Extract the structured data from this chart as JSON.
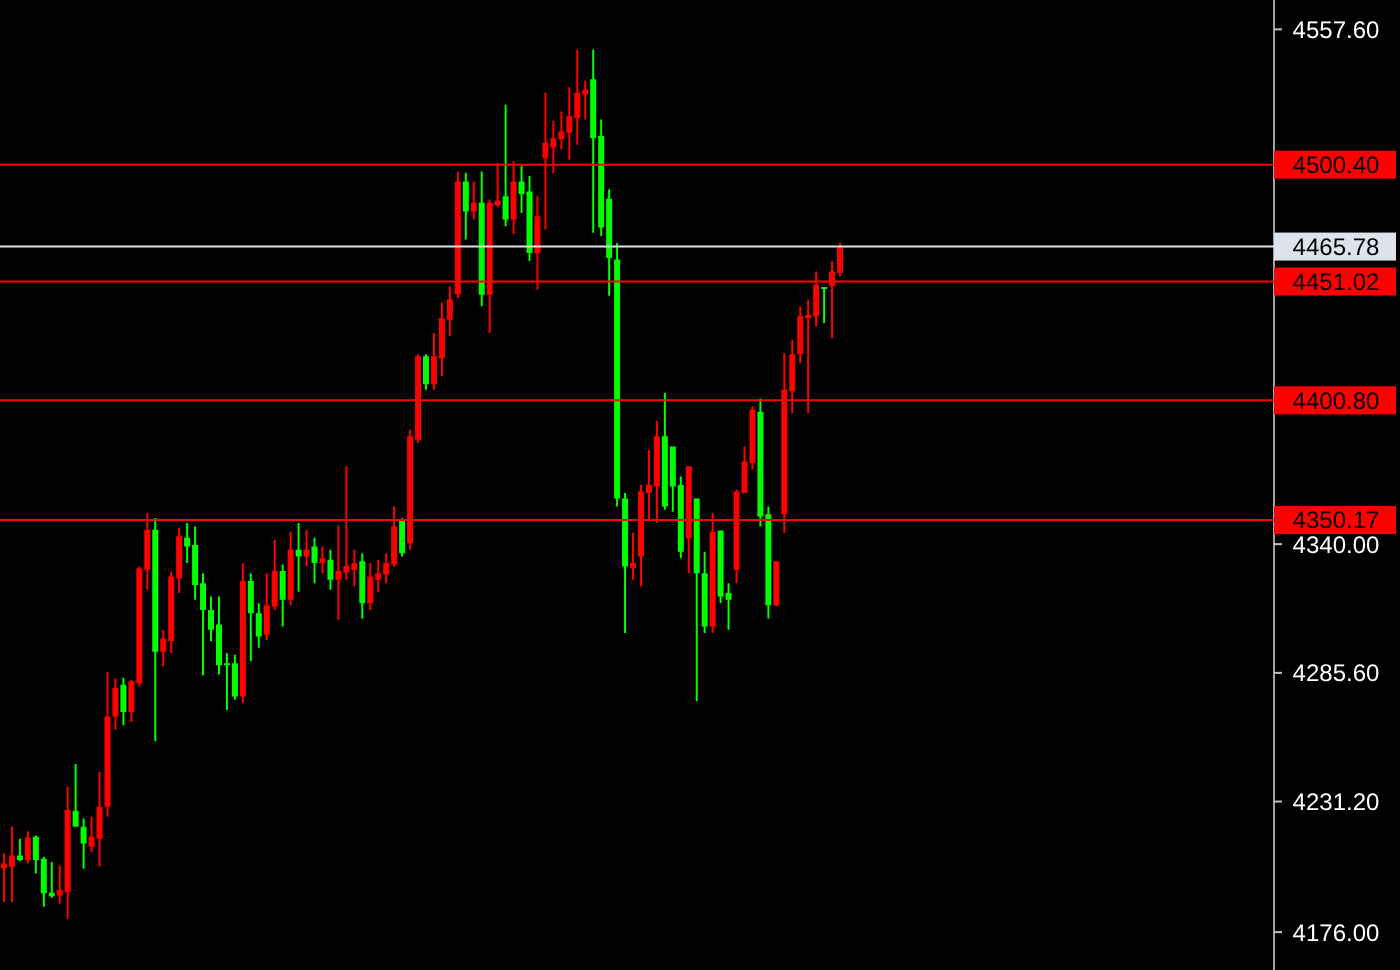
{
  "chart_data": {
    "type": "candlestick",
    "categories": [
      null,
      null,
      null,
      null,
      null,
      null,
      null,
      null,
      null,
      null,
      null,
      null,
      null,
      null,
      null,
      null,
      null,
      null,
      null,
      null,
      null,
      null,
      null,
      null,
      null,
      null,
      null,
      null,
      null,
      null,
      null,
      null,
      null,
      null,
      null,
      null,
      null,
      null,
      null,
      null,
      null,
      null,
      null,
      null,
      null,
      null,
      null,
      null,
      null,
      null,
      null,
      null,
      null,
      null,
      null,
      null,
      null,
      null,
      null,
      null,
      null,
      null,
      null,
      null,
      null,
      null,
      null,
      null,
      null,
      null,
      null,
      null,
      null,
      null,
      null,
      null,
      null,
      null,
      null,
      null,
      null,
      null,
      null,
      null,
      null,
      null,
      null,
      null,
      null,
      null,
      null,
      null,
      null,
      null,
      null,
      null,
      null,
      null,
      null,
      null,
      null,
      null,
      null,
      null,
      null,
      null,
      null,
      null,
      null,
      null,
      null,
      null,
      null,
      null,
      null,
      null,
      null,
      null,
      null,
      null,
      null,
      null,
      null,
      null,
      null,
      null,
      null,
      null,
      null,
      null,
      null,
      null,
      null,
      null,
      null,
      null,
      null,
      null,
      null,
      null,
      null,
      null,
      null,
      null,
      null,
      null,
      null,
      null,
      null,
      null,
      null,
      null,
      null,
      null,
      null,
      null,
      null,
      null,
      null,
      null
    ],
    "ohlc": [
      [
        4203,
        4209.3,
        4188.7,
        4205
      ],
      [
        4203.6,
        4220.6,
        4188.7,
        4208.4
      ],
      [
        4208.4,
        4215.5,
        4206,
        4206.5
      ],
      [
        4206.5,
        4218.6,
        4205,
        4216
      ],
      [
        4216.3,
        4216.9,
        4200.8,
        4206.5
      ],
      [
        4207,
        4207.9,
        4186.7,
        4192.4
      ],
      [
        4192.6,
        4205.6,
        4190.4,
        4191.2
      ],
      [
        4191.5,
        4204.2,
        4188.1,
        4193.8
      ],
      [
        4192.9,
        4237.5,
        4181.6,
        4227.6
      ],
      [
        4227.3,
        4247.1,
        4220.6,
        4220.6
      ],
      [
        4220.6,
        4224,
        4202.8,
        4213.5
      ],
      [
        4212.1,
        4224.8,
        4209.9,
        4216.3
      ],
      [
        4215.5,
        4243.7,
        4203.6,
        4229
      ],
      [
        4229,
        4286,
        4224.8,
        4267.1
      ],
      [
        4267.1,
        4283.2,
        4261.5,
        4279.2
      ],
      [
        4280.6,
        4283.5,
        4263.4,
        4269.1
      ],
      [
        4269.1,
        4282.6,
        4264.8,
        4282
      ],
      [
        4281.2,
        4330.6,
        4279.8,
        4329.7
      ],
      [
        4329.1,
        4353.1,
        4320.7,
        4346.1
      ],
      [
        4346.1,
        4351.1,
        4256.7,
        4294.5
      ],
      [
        4294.5,
        4303.8,
        4288.3,
        4300.1
      ],
      [
        4299,
        4328.3,
        4293.9,
        4326.3
      ],
      [
        4325.5,
        4346.9,
        4319.3,
        4343.3
      ],
      [
        4342.7,
        4348.9,
        4332,
        4339
      ],
      [
        4339.6,
        4347.5,
        4316.5,
        4322.7
      ],
      [
        4323.5,
        4327.7,
        4284.6,
        4312.2
      ],
      [
        4312.2,
        4317.9,
        4299,
        4303.8
      ],
      [
        4306,
        4317.9,
        4284.9,
        4288.8
      ],
      [
        4289.7,
        4293.9,
        4269.9,
        4288.8
      ],
      [
        4289.7,
        4293.3,
        4274.2,
        4275.6
      ],
      [
        4275.6,
        4331.9,
        4272.7,
        4324.4
      ],
      [
        4324.4,
        4327.7,
        4290.5,
        4310.8
      ],
      [
        4310.8,
        4315,
        4296.2,
        4301
      ],
      [
        4301.8,
        4327.7,
        4299.5,
        4314.2
      ],
      [
        4313.6,
        4341.8,
        4312.2,
        4328.6
      ],
      [
        4328.6,
        4331.4,
        4305.2,
        4316.5
      ],
      [
        4316.5,
        4345.2,
        4314.2,
        4337.6
      ],
      [
        4337.6,
        4348.9,
        4319.9,
        4334.8
      ],
      [
        4334.8,
        4346.1,
        4330.6,
        4337.6
      ],
      [
        4339,
        4342.7,
        4323.5,
        4332
      ],
      [
        4332,
        4339,
        4327.7,
        4334
      ],
      [
        4333.4,
        4337.6,
        4320.7,
        4324.9
      ],
      [
        4324.9,
        4348,
        4308,
        4328.6
      ],
      [
        4328,
        4373,
        4324.9,
        4330.8
      ],
      [
        4329.1,
        4337.6,
        4322.1,
        4331.9
      ],
      [
        4332.8,
        4336.2,
        4308.5,
        4315
      ],
      [
        4315,
        4332,
        4312.2,
        4326.3
      ],
      [
        4324.9,
        4333.4,
        4319.9,
        4327.7
      ],
      [
        4327.2,
        4336.2,
        4323.5,
        4332
      ],
      [
        4331.4,
        4356,
        4330.6,
        4347.5
      ],
      [
        4350.3,
        4350.9,
        4334.8,
        4336.2
      ],
      [
        4340.4,
        4388.4,
        4337.6,
        4385.6
      ],
      [
        4384.1,
        4420.3,
        4382.7,
        4419.4
      ],
      [
        4419.4,
        4420.3,
        4405.3,
        4407.6
      ],
      [
        4407.6,
        4429.3,
        4405.3,
        4419.4
      ],
      [
        4418.6,
        4442,
        4411,
        4435.5
      ],
      [
        4434.9,
        4449,
        4427.9,
        4443.4
      ],
      [
        4445.6,
        4497.5,
        4443.9,
        4493.3
      ],
      [
        4493.3,
        4497,
        4468.8,
        4480.6
      ],
      [
        4480.6,
        4493.3,
        4477.2,
        4484.3
      ],
      [
        4484.3,
        4497.5,
        4440.6,
        4445.4
      ],
      [
        4445.4,
        4485.7,
        4429.3,
        4484.3
      ],
      [
        4483.4,
        4501.2,
        4482.3,
        4485.1
      ],
      [
        4487.1,
        4525.7,
        4474.4,
        4477.2
      ],
      [
        4477.2,
        4501.8,
        4471,
        4493.3
      ],
      [
        4493.3,
        4499.8,
        4480,
        4487.9
      ],
      [
        4489.1,
        4495.6,
        4459.7,
        4463.1
      ],
      [
        4463.1,
        4487.1,
        4447.6,
        4478.6
      ],
      [
        4503.2,
        4530.8,
        4473,
        4509.7
      ],
      [
        4507.7,
        4518.9,
        4496.8,
        4511.6
      ],
      [
        4511.1,
        4522.9,
        4506.8,
        4514.4
      ],
      [
        4513.9,
        4533.1,
        4502.6,
        4520.9
      ],
      [
        4520.1,
        4549.1,
        4508.8,
        4530.8
      ],
      [
        4530.2,
        4535.9,
        4519.5,
        4532.2
      ],
      [
        4536.5,
        4549.1,
        4471.6,
        4511.6
      ],
      [
        4512.5,
        4519.5,
        4470.2,
        4473.8
      ],
      [
        4486,
        4490,
        4445,
        4461
      ],
      [
        4460.3,
        4467.3,
        4355.9,
        4359.3
      ],
      [
        4359.3,
        4361.6,
        4302.4,
        4330.6
      ],
      [
        4330,
        4344.7,
        4324.9,
        4332
      ],
      [
        4334.8,
        4365,
        4322.1,
        4362.2
      ],
      [
        4361.6,
        4379.9,
        4350.3,
        4365
      ],
      [
        4364.4,
        4392,
        4348.9,
        4385.6
      ],
      [
        4385.6,
        4403.9,
        4354.5,
        4355.9
      ],
      [
        4381.3,
        4381.3,
        4353.7,
        4364.4
      ],
      [
        4365,
        4368.6,
        4334,
        4336.8
      ],
      [
        4342.4,
        4372.9,
        4327.7,
        4372.9
      ],
      [
        4359.3,
        4359.3,
        4273.6,
        4327.7
      ],
      [
        4327.7,
        4336.8,
        4302.4,
        4305.2
      ],
      [
        4305.2,
        4353.1,
        4302.4,
        4345.2
      ],
      [
        4345.8,
        4345.8,
        4315.1,
        4317.9
      ],
      [
        4319.3,
        4323.5,
        4303.8,
        4316.5
      ],
      [
        4329.2,
        4363,
        4323.5,
        4362.2
      ],
      [
        4361.6,
        4381.3,
        4361.6,
        4374.9
      ],
      [
        4374.3,
        4398.3,
        4371.5,
        4396.8
      ],
      [
        4396,
        4401.6,
        4347.5,
        4351.7
      ],
      [
        4352.6,
        4355.9,
        4308.6,
        4314.2
      ],
      [
        4314.2,
        4332.8,
        4313.6,
        4332.8
      ],
      [
        4352.6,
        4420.8,
        4344.7,
        4405.3
      ],
      [
        4404.5,
        4426.5,
        4395.4,
        4420.3
      ],
      [
        4420.3,
        4440.6,
        4416.6,
        4436.3
      ],
      [
        4435.5,
        4443.4,
        4395.4,
        4436.9
      ],
      [
        4436.3,
        4455.2,
        4432.1,
        4449.6
      ],
      [
        4448.7,
        4448.7,
        4433.5,
        4447.9
      ],
      [
        4449,
        4459.7,
        4427,
        4455.2
      ],
      [
        4454.6,
        4467.4,
        4453.2,
        4465.4
      ],
      null,
      null,
      null,
      null,
      null,
      null,
      null,
      null,
      null,
      null,
      null,
      null,
      null,
      null,
      null,
      null,
      null,
      null,
      null,
      null,
      null,
      null,
      null,
      null,
      null,
      null,
      null,
      null,
      null,
      null,
      null,
      null,
      null,
      null,
      null,
      null,
      null,
      null,
      null,
      null,
      null,
      null,
      null,
      null,
      null,
      null,
      null,
      null,
      null,
      null,
      null,
      null,
      null,
      null
    ],
    "colors": [
      "#ff0000",
      "#ff0000",
      "#00ff00",
      "#ff0000",
      "#00ff00",
      "#00ff00",
      "#00ff00",
      "#ff0000",
      "#ff0000",
      "#00ff00",
      "#00ff00",
      "#ff0000",
      "#ff0000",
      "#ff0000",
      "#ff0000",
      "#00ff00",
      "#ff0000",
      "#ff0000",
      "#ff0000",
      "#00ff00",
      "#ff0000",
      "#ff0000",
      "#ff0000",
      "#00ff00",
      "#00ff00",
      "#00ff00",
      "#00ff00",
      "#00ff00",
      "#00ff00",
      "#00ff00",
      "#ff0000",
      "#00ff00",
      "#00ff00",
      "#ff0000",
      "#ff0000",
      "#00ff00",
      "#ff0000",
      "#00ff00",
      "#ff0000",
      "#00ff00",
      "#ff0000",
      "#00ff00",
      "#ff0000",
      "#ff0000",
      "#ff0000",
      "#00ff00",
      "#ff0000",
      "#ff0000",
      "#ff0000",
      "#ff0000",
      "#00ff00",
      "#ff0000",
      "#ff0000",
      "#00ff00",
      "#ff0000",
      "#ff0000",
      "#ff0000",
      "#ff0000",
      "#00ff00",
      "#ff0000",
      "#00ff00",
      "#ff0000",
      "#ff0000",
      "#00ff00",
      "#ff0000",
      "#00ff00",
      "#00ff00",
      "#ff0000",
      "#ff0000",
      "#ff0000",
      "#ff0000",
      "#ff0000",
      "#ff0000",
      "#ff0000",
      "#00ff00",
      "#00ff00",
      "#00ff00",
      "#00ff00",
      "#00ff00",
      "#ff0000",
      "#ff0000",
      "#ff0000",
      "#ff0000",
      "#00ff00",
      "#00ff00",
      "#00ff00",
      "#ff0000",
      "#00ff00",
      "#00ff00",
      "#ff0000",
      "#00ff00",
      "#00ff00",
      "#ff0000",
      "#ff0000",
      "#ff0000",
      "#00ff00",
      "#00ff00",
      "#ff0000",
      "#ff0000",
      "#ff0000",
      "#ff0000",
      "#ff0000",
      "#ff0000",
      "#00ff00",
      "#ff0000",
      "#ff0000",
      null,
      null,
      null,
      null,
      null,
      null,
      null,
      null,
      null,
      null,
      null,
      null,
      null,
      null,
      null,
      null,
      null,
      null,
      null,
      null,
      null,
      null,
      null,
      null,
      null,
      null,
      null,
      null,
      null,
      null,
      null,
      null,
      null,
      null,
      null,
      null,
      null,
      null,
      null,
      null,
      null,
      null,
      null,
      null,
      null,
      null,
      null,
      null,
      null,
      null,
      null,
      null,
      null,
      null
    ],
    "ylim": [
      4160,
      4570
    ],
    "yticks": [
      {
        "value": 4176,
        "label": "4176.00"
      },
      {
        "value": 4231.2,
        "label": "4231.20"
      },
      {
        "value": 4285.6,
        "label": "4285.60"
      },
      {
        "value": 4340,
        "label": "4340.00"
      },
      {
        "value": 4557.6,
        "label": "4557.60"
      }
    ],
    "tick_labels": "y",
    "ref_lines": [
      {
        "axis": "y",
        "value": 4500.4,
        "label": "4500.40",
        "color": "#ff0000"
      },
      {
        "axis": "y",
        "value": 4465.78,
        "label": "4465.78",
        "color": "#dde3ea"
      },
      {
        "axis": "y",
        "value": 4451.02,
        "label": "4451.02",
        "color": "#ff0000"
      },
      {
        "axis": "y",
        "value": 4400.8,
        "label": "4400.80",
        "color": "#ff0000"
      },
      {
        "axis": "y",
        "value": 4350.17,
        "label": "4350.17",
        "color": "#ff0000"
      }
    ]
  }
}
